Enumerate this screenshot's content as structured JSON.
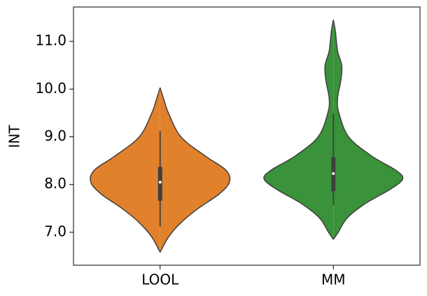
{
  "chart_data": {
    "type": "violin",
    "ylabel": "INT",
    "categories": [
      "LOOL",
      "MM"
    ],
    "ylim": [
      6.31,
      11.72
    ],
    "yticks": [
      {
        "value": 7,
        "label": "7.0"
      },
      {
        "value": 8,
        "label": "8.0"
      },
      {
        "value": 9,
        "label": "9.0"
      },
      {
        "value": 10,
        "label": "10.0"
      },
      {
        "value": 11,
        "label": "11.0"
      }
    ],
    "edge_color": "#3f3f3f",
    "violins": [
      {
        "color": "#e1812c",
        "density_y": [
          10.03,
          9.8,
          9.5,
          9.0,
          8.6,
          8.3,
          8.05,
          7.8,
          7.5,
          7.2,
          6.9,
          6.58
        ],
        "density_width": [
          0,
          0.05,
          0.12,
          0.3,
          0.65,
          0.95,
          1,
          0.85,
          0.55,
          0.3,
          0.12,
          0
        ],
        "whisker_low": 7.12,
        "q1": 7.66,
        "median": 8.05,
        "q3": 8.37,
        "whisker_high": 9.12
      },
      {
        "color": "#3a923a",
        "density_y": [
          11.45,
          11.2,
          10.8,
          10.5,
          10.2,
          9.8,
          9.5,
          9.0,
          8.6,
          8.3,
          8.12,
          7.9,
          7.6,
          7.3,
          7.0,
          6.85
        ],
        "density_width": [
          0,
          0.03,
          0.06,
          0.12,
          0.11,
          0.06,
          0.08,
          0.22,
          0.55,
          0.9,
          1,
          0.82,
          0.46,
          0.2,
          0.07,
          0
        ],
        "whisker_low": 7.57,
        "q1": 7.86,
        "median": 8.23,
        "q3": 8.57,
        "whisker_high": 9.49
      }
    ]
  }
}
